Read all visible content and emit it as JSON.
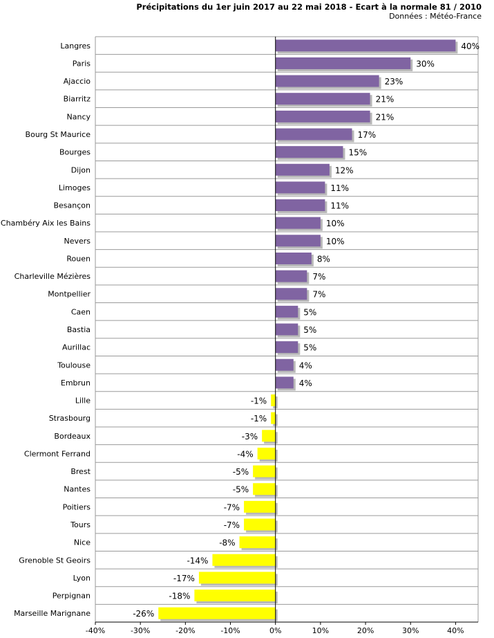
{
  "chart_data": {
    "type": "bar",
    "orientation": "horizontal",
    "title": "Précipitations du 1er juin 2017 au 22 mai 2018 - Ecart à la normale 81 / 2010",
    "subtitle": "Données : Météo-France",
    "xlabel": "",
    "ylabel": "",
    "xlim": [
      -40,
      45
    ],
    "x_ticks": [
      -40,
      -30,
      -20,
      -10,
      0,
      10,
      20,
      30,
      40
    ],
    "tick_suffix": "%",
    "grid": "horizontal lines",
    "legend": "none",
    "colors": {
      "positive": "#8064a2",
      "negative": "#ffff00"
    },
    "categories": [
      "Langres",
      "Paris",
      "Ajaccio",
      "Biarritz",
      "Nancy",
      "Bourg St Maurice",
      "Bourges",
      "Dijon",
      "Limoges",
      "Besançon",
      "Chambéry Aix les Bains",
      "Nevers",
      "Rouen",
      "Charleville Mézières",
      "Montpellier",
      "Caen",
      "Bastia",
      "Aurillac",
      "Toulouse",
      "Embrun",
      "Lille",
      "Strasbourg",
      "Bordeaux",
      "Clermont Ferrand",
      "Brest",
      "Nantes",
      "Poitiers",
      "Tours",
      "Nice",
      "Grenoble St Geoirs",
      "Lyon",
      "Perpignan",
      "Marseille Marignane"
    ],
    "values": [
      40,
      30,
      23,
      21,
      21,
      17,
      15,
      12,
      11,
      11,
      10,
      10,
      8,
      7,
      7,
      5,
      5,
      5,
      4,
      4,
      -1,
      -1,
      -3,
      -4,
      -5,
      -5,
      -7,
      -7,
      -8,
      -14,
      -17,
      -18,
      -26
    ],
    "value_labels": [
      "40%",
      "30%",
      "23%",
      "21%",
      "21%",
      "17%",
      "15%",
      "12%",
      "11%",
      "11%",
      "10%",
      "10%",
      "8%",
      "7%",
      "7%",
      "5%",
      "5%",
      "5%",
      "4%",
      "4%",
      "-1%",
      "-1%",
      "-3%",
      "-4%",
      "-5%",
      "-5%",
      "-7%",
      "-7%",
      "-8%",
      "-14%",
      "-17%",
      "-18%",
      "-26%"
    ]
  }
}
